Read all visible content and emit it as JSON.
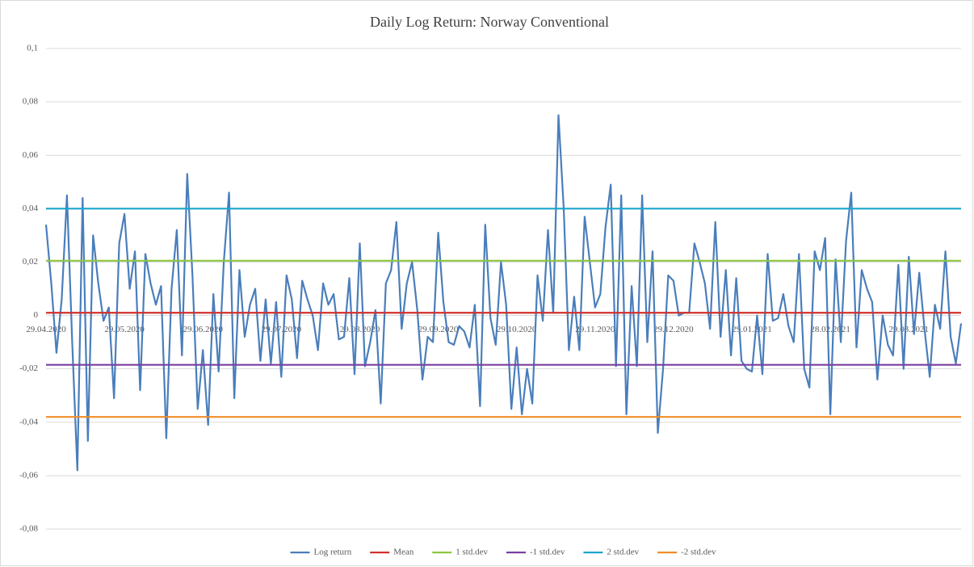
{
  "chart_data": {
    "type": "line",
    "title": "Daily Log Return: Norway Conventional",
    "categories": [
      "29.04.2020",
      null,
      null,
      null,
      null,
      null,
      null,
      null,
      null,
      null,
      null,
      null,
      null,
      null,
      null,
      "29.05.2020",
      null,
      null,
      null,
      null,
      null,
      null,
      null,
      null,
      null,
      null,
      null,
      null,
      null,
      null,
      "29.06.2020",
      null,
      null,
      null,
      null,
      null,
      null,
      null,
      null,
      null,
      null,
      null,
      null,
      null,
      null,
      "29.07.2020",
      null,
      null,
      null,
      null,
      null,
      null,
      null,
      null,
      null,
      null,
      null,
      null,
      null,
      null,
      "29.08.2020",
      null,
      null,
      null,
      null,
      null,
      null,
      null,
      null,
      null,
      null,
      null,
      null,
      null,
      null,
      "29.09.2020",
      null,
      null,
      null,
      null,
      null,
      null,
      null,
      null,
      null,
      null,
      null,
      null,
      null,
      null,
      "29.10.2020",
      null,
      null,
      null,
      null,
      null,
      null,
      null,
      null,
      null,
      null,
      null,
      null,
      null,
      null,
      "29.11.2020",
      null,
      null,
      null,
      null,
      null,
      null,
      null,
      null,
      null,
      null,
      null,
      null,
      null,
      null,
      "29.12.2020",
      null,
      null,
      null,
      null,
      null,
      null,
      null,
      null,
      null,
      null,
      null,
      null,
      null,
      null,
      "29.01.2021",
      null,
      null,
      null,
      null,
      null,
      null,
      null,
      null,
      null,
      null,
      null,
      null,
      null,
      null,
      "28.02.2021",
      null,
      null,
      null,
      null,
      null,
      null,
      null,
      null,
      null,
      null,
      null,
      null,
      null,
      null,
      "29.03.2021",
      null,
      null,
      null,
      null,
      null,
      null,
      null,
      null,
      null,
      null
    ],
    "series": [
      {
        "name": "Log return",
        "color": "#4a7ebb",
        "values": [
          0.034,
          0.012,
          -0.014,
          0.006,
          0.045,
          -0.01,
          -0.058,
          0.044,
          -0.047,
          0.03,
          0.012,
          -0.002,
          0.003,
          -0.031,
          0.027,
          0.038,
          0.01,
          0.024,
          -0.028,
          0.023,
          0.012,
          0.004,
          0.011,
          -0.046,
          0.01,
          0.032,
          -0.015,
          0.053,
          0.015,
          -0.035,
          -0.013,
          -0.041,
          0.008,
          -0.021,
          0.02,
          0.046,
          -0.031,
          0.017,
          -0.008,
          0.004,
          0.01,
          -0.017,
          0.006,
          -0.018,
          0.005,
          -0.023,
          0.015,
          0.006,
          -0.016,
          0.013,
          0.006,
          0.0,
          -0.013,
          0.012,
          0.004,
          0.008,
          -0.009,
          -0.008,
          0.014,
          -0.022,
          0.027,
          -0.019,
          -0.01,
          0.002,
          -0.033,
          0.012,
          0.017,
          0.035,
          -0.005,
          0.012,
          0.02,
          0.002,
          -0.024,
          -0.008,
          -0.01,
          0.031,
          0.005,
          -0.01,
          -0.011,
          -0.004,
          -0.006,
          -0.012,
          0.004,
          -0.034,
          0.034,
          -0.001,
          -0.011,
          0.02,
          0.004,
          -0.035,
          -0.012,
          -0.037,
          -0.02,
          -0.033,
          0.015,
          -0.002,
          0.032,
          0.001,
          0.075,
          0.04,
          -0.013,
          0.007,
          -0.013,
          0.037,
          0.02,
          0.003,
          0.008,
          0.033,
          0.049,
          -0.019,
          0.045,
          -0.037,
          0.011,
          -0.019,
          0.045,
          -0.01,
          0.024,
          -0.044,
          -0.02,
          0.015,
          0.013,
          0.0,
          0.001,
          0.001,
          0.027,
          0.02,
          0.012,
          -0.005,
          0.035,
          -0.008,
          0.017,
          -0.015,
          0.014,
          -0.017,
          -0.02,
          -0.021,
          0.0,
          -0.022,
          0.023,
          -0.002,
          -0.001,
          0.008,
          -0.004,
          -0.01,
          0.023,
          -0.02,
          -0.027,
          0.024,
          0.017,
          0.029,
          -0.037,
          0.021,
          -0.01,
          0.028,
          0.046,
          -0.012,
          0.017,
          0.01,
          0.005,
          -0.024,
          0.0,
          -0.011,
          -0.015,
          0.019,
          -0.02,
          0.022,
          -0.007,
          0.016,
          -0.005,
          -0.023,
          0.004,
          -0.005,
          0.024,
          -0.008,
          -0.018,
          -0.003
        ]
      },
      {
        "name": "Mean",
        "color": "#d0312d",
        "value": 0.001
      },
      {
        "name": "1 std.dev",
        "color": "#8dc63f",
        "value": 0.0205
      },
      {
        "name": "-1 std.dev",
        "color": "#7a3fa0",
        "value": -0.0185
      },
      {
        "name": "2 std.dev",
        "color": "#1aa6cc",
        "value": 0.04
      },
      {
        "name": "-2 std.dev",
        "color": "#f28c28",
        "value": -0.038
      }
    ],
    "ylim": [
      -0.08,
      0.1
    ],
    "yticks": [
      {
        "value": -0.08,
        "label": "-0,08"
      },
      {
        "value": -0.06,
        "label": "-0,06"
      },
      {
        "value": -0.04,
        "label": "-0,04"
      },
      {
        "value": -0.02,
        "label": "-0,02"
      },
      0,
      {
        "value": 0.02,
        "label": "0,02"
      },
      {
        "value": 0.04,
        "label": "0,04"
      },
      {
        "value": 0.06,
        "label": "0,06"
      },
      {
        "value": 0.08,
        "label": "0,08"
      },
      {
        "value": 0.1,
        "label": "0,1"
      }
    ],
    "grid": true,
    "legend": "bottom"
  }
}
